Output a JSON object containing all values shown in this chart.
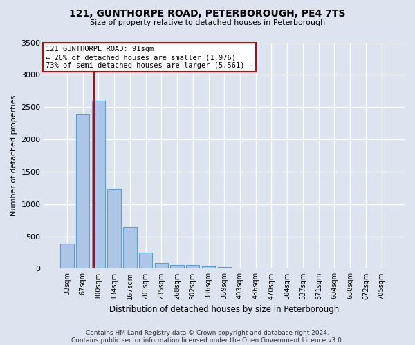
{
  "title": "121, GUNTHORPE ROAD, PETERBOROUGH, PE4 7TS",
  "subtitle": "Size of property relative to detached houses in Peterborough",
  "xlabel": "Distribution of detached houses by size in Peterborough",
  "ylabel": "Number of detached properties",
  "footer_line1": "Contains HM Land Registry data © Crown copyright and database right 2024.",
  "footer_line2": "Contains public sector information licensed under the Open Government Licence v3.0.",
  "categories": [
    "33sqm",
    "67sqm",
    "100sqm",
    "134sqm",
    "167sqm",
    "201sqm",
    "235sqm",
    "268sqm",
    "302sqm",
    "336sqm",
    "369sqm",
    "403sqm",
    "436sqm",
    "470sqm",
    "504sqm",
    "537sqm",
    "571sqm",
    "604sqm",
    "638sqm",
    "672sqm",
    "705sqm"
  ],
  "values": [
    390,
    2400,
    2600,
    1230,
    640,
    255,
    90,
    60,
    55,
    40,
    30,
    0,
    0,
    0,
    0,
    0,
    0,
    0,
    0,
    0,
    0
  ],
  "bar_color": "#adc6e8",
  "bar_edge_color": "#5a9fd4",
  "annotation_line1": "121 GUNTHORPE ROAD: 91sqm",
  "annotation_line2": "← 26% of detached houses are smaller (1,976)",
  "annotation_line3": "73% of semi-detached houses are larger (5,561) →",
  "annotation_box_color": "#ffffff",
  "annotation_box_edge_color": "#cc0000",
  "vline_color": "#cc0000",
  "bg_color": "#dde4f0",
  "grid_color": "#ffffff",
  "ylim": [
    0,
    3500
  ],
  "yticks": [
    0,
    500,
    1000,
    1500,
    2000,
    2500,
    3000,
    3500
  ]
}
